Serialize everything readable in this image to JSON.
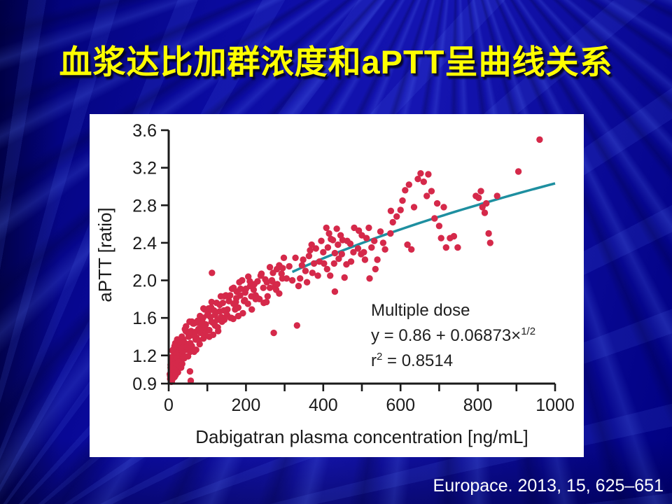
{
  "slide": {
    "title": "血浆达比加群浓度和aPTT呈曲线关系",
    "citation": "Europace. 2013, 15, 625–651",
    "colors": {
      "background_base": "#0a0a96",
      "title_text": "#ffff00",
      "citation_text": "#ffffff",
      "panel_background": "#ffffff"
    }
  },
  "chart_data": {
    "type": "scatter",
    "title": "",
    "xlabel": "Dabigatran plasma concentration [ng/mL]",
    "ylabel": "aPTT [ratio]",
    "xlim": [
      0,
      1000
    ],
    "ylim": [
      0.9,
      3.6
    ],
    "xticks_labeled": [
      "0",
      "200",
      "400",
      "600",
      "800",
      "1000"
    ],
    "xticks_minor": [
      100,
      300,
      500,
      700,
      900
    ],
    "yticks": [
      "0.9",
      "1.2",
      "1.6",
      "2.0",
      "2.4",
      "2.8",
      "3.2",
      "3.6"
    ],
    "grid": false,
    "legend": "none",
    "point_color": "#d5294a",
    "line_color": "#1e8fa0",
    "axis_color": "#1a1a1a",
    "annotation": {
      "line1": "Multiple dose",
      "eq_base": "y = 0.86 + 0.06873×",
      "eq_sup": "1/2",
      "r_base": "r",
      "r_sup": "2",
      "r_rest": " = 0.8514"
    },
    "fit": {
      "model": "y = a + b·x^(1/2)",
      "intercept": 0.86,
      "coefficient": 0.06873,
      "r_squared": 0.8514,
      "x_start": 320,
      "x_end": 1000
    },
    "points": [
      [
        3,
        1.0
      ],
      [
        4,
        0.95
      ],
      [
        5,
        1.1
      ],
      [
        6,
        0.92
      ],
      [
        7,
        1.18
      ],
      [
        8,
        1.03
      ],
      [
        9,
        1.13
      ],
      [
        10,
        0.95
      ],
      [
        11,
        1.26
      ],
      [
        12,
        1.1
      ],
      [
        13,
        1.04
      ],
      [
        14,
        1.23
      ],
      [
        15,
        0.97
      ],
      [
        16,
        1.18
      ],
      [
        17,
        1.33
      ],
      [
        18,
        1.11
      ],
      [
        19,
        1.24
      ],
      [
        20,
        1.08
      ],
      [
        22,
        1.31
      ],
      [
        24,
        1.02
      ],
      [
        26,
        1.23
      ],
      [
        28,
        1.17
      ],
      [
        30,
        1.33
      ],
      [
        32,
        1.14
      ],
      [
        34,
        1.4
      ],
      [
        36,
        1.25
      ],
      [
        38,
        1.34
      ],
      [
        40,
        1.17
      ],
      [
        42,
        1.48
      ],
      [
        44,
        1.32
      ],
      [
        46,
        1.26
      ],
      [
        48,
        1.45
      ],
      [
        50,
        1.19
      ],
      [
        52,
        1.4
      ],
      [
        54,
        1.56
      ],
      [
        56,
        1.33
      ],
      [
        58,
        1.46
      ],
      [
        60,
        1.3
      ],
      [
        63,
        1.54
      ],
      [
        66,
        1.24
      ],
      [
        69,
        1.45
      ],
      [
        72,
        1.39
      ],
      [
        75,
        1.55
      ],
      [
        78,
        1.36
      ],
      [
        81,
        1.62
      ],
      [
        84,
        1.47
      ],
      [
        87,
        1.56
      ],
      [
        90,
        1.38
      ],
      [
        93,
        1.69
      ],
      [
        96,
        1.53
      ],
      [
        99,
        1.47
      ],
      [
        102,
        1.66
      ],
      [
        105,
        1.4
      ],
      [
        108,
        1.61
      ],
      [
        111,
        1.77
      ],
      [
        114,
        1.55
      ],
      [
        117,
        1.68
      ],
      [
        120,
        1.52
      ],
      [
        124,
        1.76
      ],
      [
        128,
        1.46
      ],
      [
        132,
        1.67
      ],
      [
        136,
        1.61
      ],
      [
        140,
        1.76
      ],
      [
        144,
        1.58
      ],
      [
        148,
        1.84
      ],
      [
        152,
        1.69
      ],
      [
        156,
        1.78
      ],
      [
        160,
        1.6
      ],
      [
        164,
        1.91
      ],
      [
        168,
        1.75
      ],
      [
        172,
        1.69
      ],
      [
        176,
        1.88
      ],
      [
        180,
        1.62
      ],
      [
        185,
        1.84
      ],
      [
        190,
        2.0
      ],
      [
        195,
        1.78
      ],
      [
        200,
        1.91
      ],
      [
        205,
        1.75
      ],
      [
        210,
        1.99
      ],
      [
        215,
        1.69
      ],
      [
        220,
        1.9
      ],
      [
        225,
        1.84
      ],
      [
        230,
        1.99
      ],
      [
        235,
        1.8
      ],
      [
        240,
        2.07
      ],
      [
        245,
        1.92
      ],
      [
        250,
        2.01
      ],
      [
        256,
        1.83
      ],
      [
        262,
        2.14
      ],
      [
        268,
        1.99
      ],
      [
        274,
        1.93
      ],
      [
        280,
        2.12
      ],
      [
        286,
        1.86
      ],
      [
        292,
        2.07
      ],
      [
        298,
        2.24
      ],
      [
        305,
        2.02
      ],
      [
        312,
        2.15
      ],
      [
        320,
        2.0
      ],
      [
        328,
        2.24
      ],
      [
        336,
        1.94
      ],
      [
        345,
        2.16
      ],
      [
        354,
        2.1
      ],
      [
        363,
        2.26
      ],
      [
        372,
        2.08
      ],
      [
        381,
        2.34
      ],
      [
        390,
        2.2
      ],
      [
        400,
        2.3
      ],
      [
        410,
        2.12
      ],
      [
        420,
        2.44
      ],
      [
        430,
        2.29
      ],
      [
        440,
        2.23
      ],
      [
        450,
        2.43
      ],
      [
        460,
        2.17
      ],
      [
        470,
        2.39
      ],
      [
        480,
        2.56
      ],
      [
        490,
        2.34
      ],
      [
        500,
        2.48
      ],
      [
        4,
        0.98
      ],
      [
        6,
        1.09
      ],
      [
        8,
        0.92
      ],
      [
        10,
        1.25
      ],
      [
        12,
        1.1
      ],
      [
        14,
        1.05
      ],
      [
        16,
        1.25
      ],
      [
        18,
        0.99
      ],
      [
        20,
        1.21
      ],
      [
        22,
        1.37
      ],
      [
        24,
        1.16
      ],
      [
        26,
        1.29
      ],
      [
        28,
        1.13
      ],
      [
        30,
        1.37
      ],
      [
        32,
        1.07
      ],
      [
        34,
        1.28
      ],
      [
        36,
        1.22
      ],
      [
        38,
        1.37
      ],
      [
        40,
        1.19
      ],
      [
        44,
        1.46
      ],
      [
        48,
        1.32
      ],
      [
        52,
        1.42
      ],
      [
        56,
        1.24
      ],
      [
        60,
        1.56
      ],
      [
        65,
        1.41
      ],
      [
        70,
        1.37
      ],
      [
        75,
        1.57
      ],
      [
        80,
        1.32
      ],
      [
        85,
        1.53
      ],
      [
        90,
        1.7
      ],
      [
        95,
        1.49
      ],
      [
        100,
        1.63
      ],
      [
        105,
        1.47
      ],
      [
        110,
        1.71
      ],
      [
        115,
        1.42
      ],
      [
        120,
        1.63
      ],
      [
        126,
        1.58
      ],
      [
        132,
        1.74
      ],
      [
        138,
        1.56
      ],
      [
        144,
        1.83
      ],
      [
        150,
        1.68
      ],
      [
        156,
        1.78
      ],
      [
        162,
        1.6
      ],
      [
        168,
        1.92
      ],
      [
        174,
        1.77
      ],
      [
        180,
        1.71
      ],
      [
        186,
        1.91
      ],
      [
        192,
        1.65
      ],
      [
        198,
        1.87
      ],
      [
        206,
        2.04
      ],
      [
        214,
        1.83
      ],
      [
        222,
        1.96
      ],
      [
        230,
        1.81
      ],
      [
        238,
        2.05
      ],
      [
        246,
        1.76
      ],
      [
        254,
        1.98
      ],
      [
        262,
        1.92
      ],
      [
        270,
        2.08
      ],
      [
        278,
        1.9
      ],
      [
        286,
        2.16
      ],
      [
        294,
        2.02
      ],
      [
        5,
        1.07
      ],
      [
        10,
        0.95
      ],
      [
        15,
        1.3
      ],
      [
        20,
        1.17
      ],
      [
        25,
        1.13
      ],
      [
        30,
        1.35
      ],
      [
        35,
        1.11
      ],
      [
        40,
        1.34
      ],
      [
        45,
        1.51
      ],
      [
        47,
        1.29
      ],
      [
        53,
        1.44
      ],
      [
        59,
        1.3
      ],
      [
        65,
        1.54
      ],
      [
        71,
        1.26
      ],
      [
        77,
        1.48
      ],
      [
        83,
        1.44
      ],
      [
        89,
        1.6
      ],
      [
        95,
        1.42
      ],
      [
        103,
        1.7
      ],
      [
        111,
        1.56
      ],
      [
        119,
        1.67
      ],
      [
        127,
        1.5
      ],
      [
        135,
        1.83
      ],
      [
        143,
        1.68
      ],
      [
        151,
        1.63
      ],
      [
        159,
        1.84
      ],
      [
        167,
        1.59
      ],
      [
        175,
        1.81
      ],
      [
        183,
        1.98
      ],
      [
        197,
        1.79
      ],
      [
        211,
        1.94
      ],
      [
        225,
        1.8
      ],
      [
        239,
        2.05
      ],
      [
        253,
        1.77
      ],
      [
        267,
        2.0
      ],
      [
        281,
        1.96
      ],
      [
        295,
        2.13
      ],
      [
        55,
        1.03
      ],
      [
        57,
        0.93
      ],
      [
        112,
        2.08
      ],
      [
        272,
        1.44
      ],
      [
        332,
        1.52
      ],
      [
        340,
        2.02
      ],
      [
        348,
        2.22
      ],
      [
        358,
        1.98
      ],
      [
        366,
        2.32
      ],
      [
        370,
        2.38
      ],
      [
        376,
        2.18
      ],
      [
        386,
        2.05
      ],
      [
        395,
        2.42
      ],
      [
        402,
        2.18
      ],
      [
        408,
        2.56
      ],
      [
        412,
        2.35
      ],
      [
        415,
        2.5
      ],
      [
        418,
        2.05
      ],
      [
        425,
        2.43
      ],
      [
        428,
        2.18
      ],
      [
        430,
        1.88
      ],
      [
        435,
        2.55
      ],
      [
        438,
        2.38
      ],
      [
        445,
        2.48
      ],
      [
        448,
        2.28
      ],
      [
        455,
        2.03
      ],
      [
        462,
        2.42
      ],
      [
        472,
        2.2
      ],
      [
        478,
        2.3
      ],
      [
        492,
        2.53
      ],
      [
        498,
        2.28
      ],
      [
        505,
        2.3
      ],
      [
        508,
        2.22
      ],
      [
        512,
        2.45
      ],
      [
        518,
        2.56
      ],
      [
        520,
        2.02
      ],
      [
        525,
        2.35
      ],
      [
        532,
        2.42
      ],
      [
        535,
        2.12
      ],
      [
        540,
        2.22
      ],
      [
        548,
        2.52
      ],
      [
        555,
        2.4
      ],
      [
        560,
        2.33
      ],
      [
        574,
        2.5
      ],
      [
        575,
        2.74
      ],
      [
        580,
        2.62
      ],
      [
        590,
        2.68
      ],
      [
        600,
        2.75
      ],
      [
        605,
        2.85
      ],
      [
        612,
        2.96
      ],
      [
        618,
        2.38
      ],
      [
        622,
        3.02
      ],
      [
        628,
        2.33
      ],
      [
        635,
        2.78
      ],
      [
        645,
        3.08
      ],
      [
        652,
        3.14
      ],
      [
        660,
        3.05
      ],
      [
        668,
        2.9
      ],
      [
        672,
        3.13
      ],
      [
        680,
        2.95
      ],
      [
        688,
        2.66
      ],
      [
        695,
        2.82
      ],
      [
        700,
        2.58
      ],
      [
        705,
        2.45
      ],
      [
        712,
        2.78
      ],
      [
        718,
        2.35
      ],
      [
        728,
        2.45
      ],
      [
        738,
        2.47
      ],
      [
        748,
        2.35
      ],
      [
        795,
        2.9
      ],
      [
        802,
        2.88
      ],
      [
        808,
        2.95
      ],
      [
        812,
        2.78
      ],
      [
        818,
        2.72
      ],
      [
        822,
        2.82
      ],
      [
        828,
        2.5
      ],
      [
        832,
        2.4
      ],
      [
        850,
        2.9
      ],
      [
        905,
        3.16
      ],
      [
        960,
        3.5
      ]
    ]
  }
}
